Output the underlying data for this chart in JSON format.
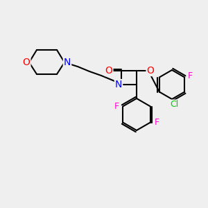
{
  "bg_color": "#efefef",
  "bond_color": "#000000",
  "bond_width": 1.5,
  "atom_colors": {
    "N": "#0000ff",
    "O": "#ff0000",
    "F": "#ff00cc",
    "Cl": "#00cc00"
  },
  "font_size": 9
}
